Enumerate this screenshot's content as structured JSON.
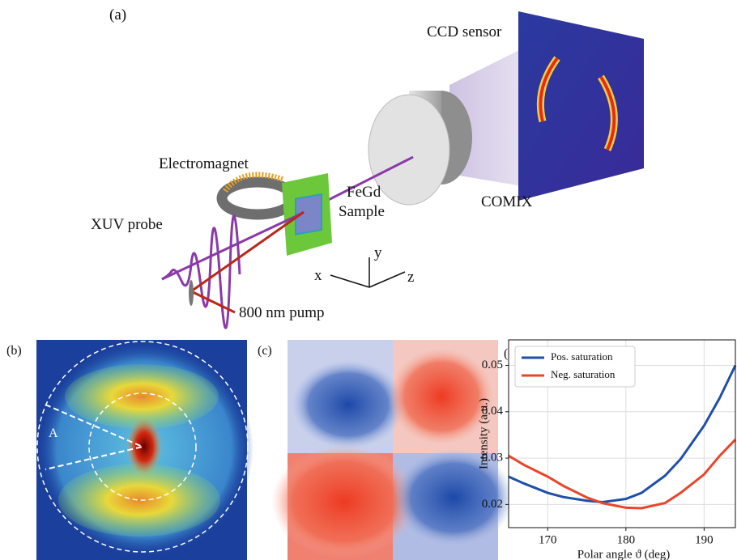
{
  "panel_labels": [
    "(a)",
    "(b)",
    "(c)",
    "(d)"
  ],
  "diagram": {
    "ccd": "CCD sensor",
    "comix": "COMIX",
    "electromagnet": "Electromagnet",
    "sample_line1": "FeGd",
    "sample_line2": "Sample",
    "xuv": "XUV probe",
    "pump": "800 nm pump",
    "axis_x": "x",
    "axis_y": "y",
    "axis_z": "z"
  },
  "panel_b": {
    "label": "A"
  },
  "chart_data": {
    "type": "line",
    "xlabel": "Polar angle ϑ (deg)",
    "ylabel": "Intensity (a.u.)",
    "x": [
      165,
      167,
      170,
      172,
      175,
      177,
      180,
      182,
      185,
      187,
      190,
      192,
      194
    ],
    "series": [
      {
        "name": "Pos. saturation",
        "color": "#1f4fa8",
        "values": [
          0.026,
          0.0245,
          0.0225,
          0.0216,
          0.0208,
          0.0205,
          0.0212,
          0.0225,
          0.0262,
          0.0298,
          0.037,
          0.043,
          0.05
        ]
      },
      {
        "name": "Neg. saturation",
        "color": "#e8462a",
        "values": [
          0.0305,
          0.0285,
          0.026,
          0.024,
          0.0215,
          0.0203,
          0.0193,
          0.0192,
          0.0203,
          0.0225,
          0.0265,
          0.0305,
          0.034
        ]
      }
    ],
    "xlim": [
      165,
      194
    ],
    "ylim": [
      0.015,
      0.0555
    ],
    "xticks": [
      170,
      180,
      190
    ],
    "yticks": [
      0.02,
      0.03,
      0.04,
      0.05
    ],
    "grid": true,
    "legend": "upper-left"
  }
}
